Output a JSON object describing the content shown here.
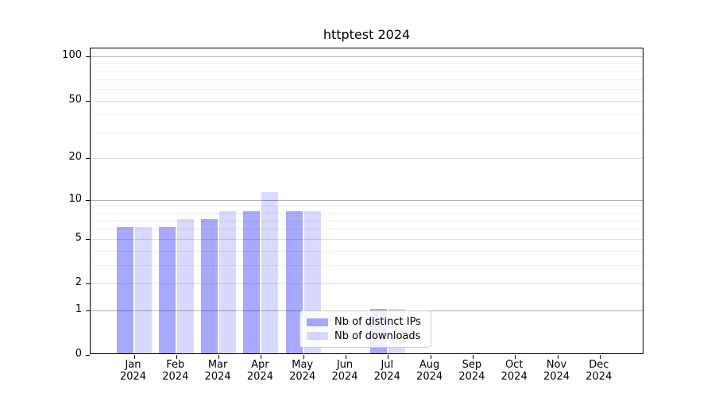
{
  "title": "httptest 2024",
  "chart_data": {
    "type": "bar",
    "title": "httptest 2024",
    "x_months": [
      "Jan",
      "Feb",
      "Mar",
      "Apr",
      "May",
      "Jun",
      "Jul",
      "Aug",
      "Sep",
      "Oct",
      "Nov",
      "Dec"
    ],
    "x_year": "2024",
    "series": [
      {
        "name": "Nb of distinct IPs",
        "color": "rgba(0,0,255,0.34)",
        "values": [
          6,
          6,
          7,
          8,
          8,
          0,
          1,
          0,
          0,
          0,
          0,
          0
        ]
      },
      {
        "name": "Nb of downloads",
        "color": "rgba(0,0,255,0.15)",
        "values": [
          6,
          7,
          8,
          11,
          8,
          0,
          1,
          0,
          0,
          0,
          0,
          0
        ]
      }
    ],
    "y_scale": "log1p",
    "ylim": [
      0,
      113
    ],
    "y_ticks": [
      0,
      1,
      2,
      5,
      10,
      20,
      50,
      100
    ],
    "y_gridlines_emphasis": [
      1,
      10,
      100
    ],
    "y_gridlines_labeled": [
      2,
      5,
      20,
      50
    ],
    "y_gridlines_minor": [
      3,
      4,
      6,
      7,
      8,
      9,
      30,
      40,
      60,
      70,
      80,
      90
    ],
    "legend_position": "lower-center",
    "grid": true
  },
  "colors": {
    "background": "#ffffff",
    "axis": "#000000",
    "text": "#000000",
    "grid_emphasis": "#b2b2b2",
    "grid_labeled": "#dedede",
    "grid_minor": "#ececec",
    "legend_border": "#cccccc",
    "bar_distinct_ips": "rgba(0,0,255,0.34)",
    "bar_downloads": "rgba(0,0,255,0.15)"
  }
}
